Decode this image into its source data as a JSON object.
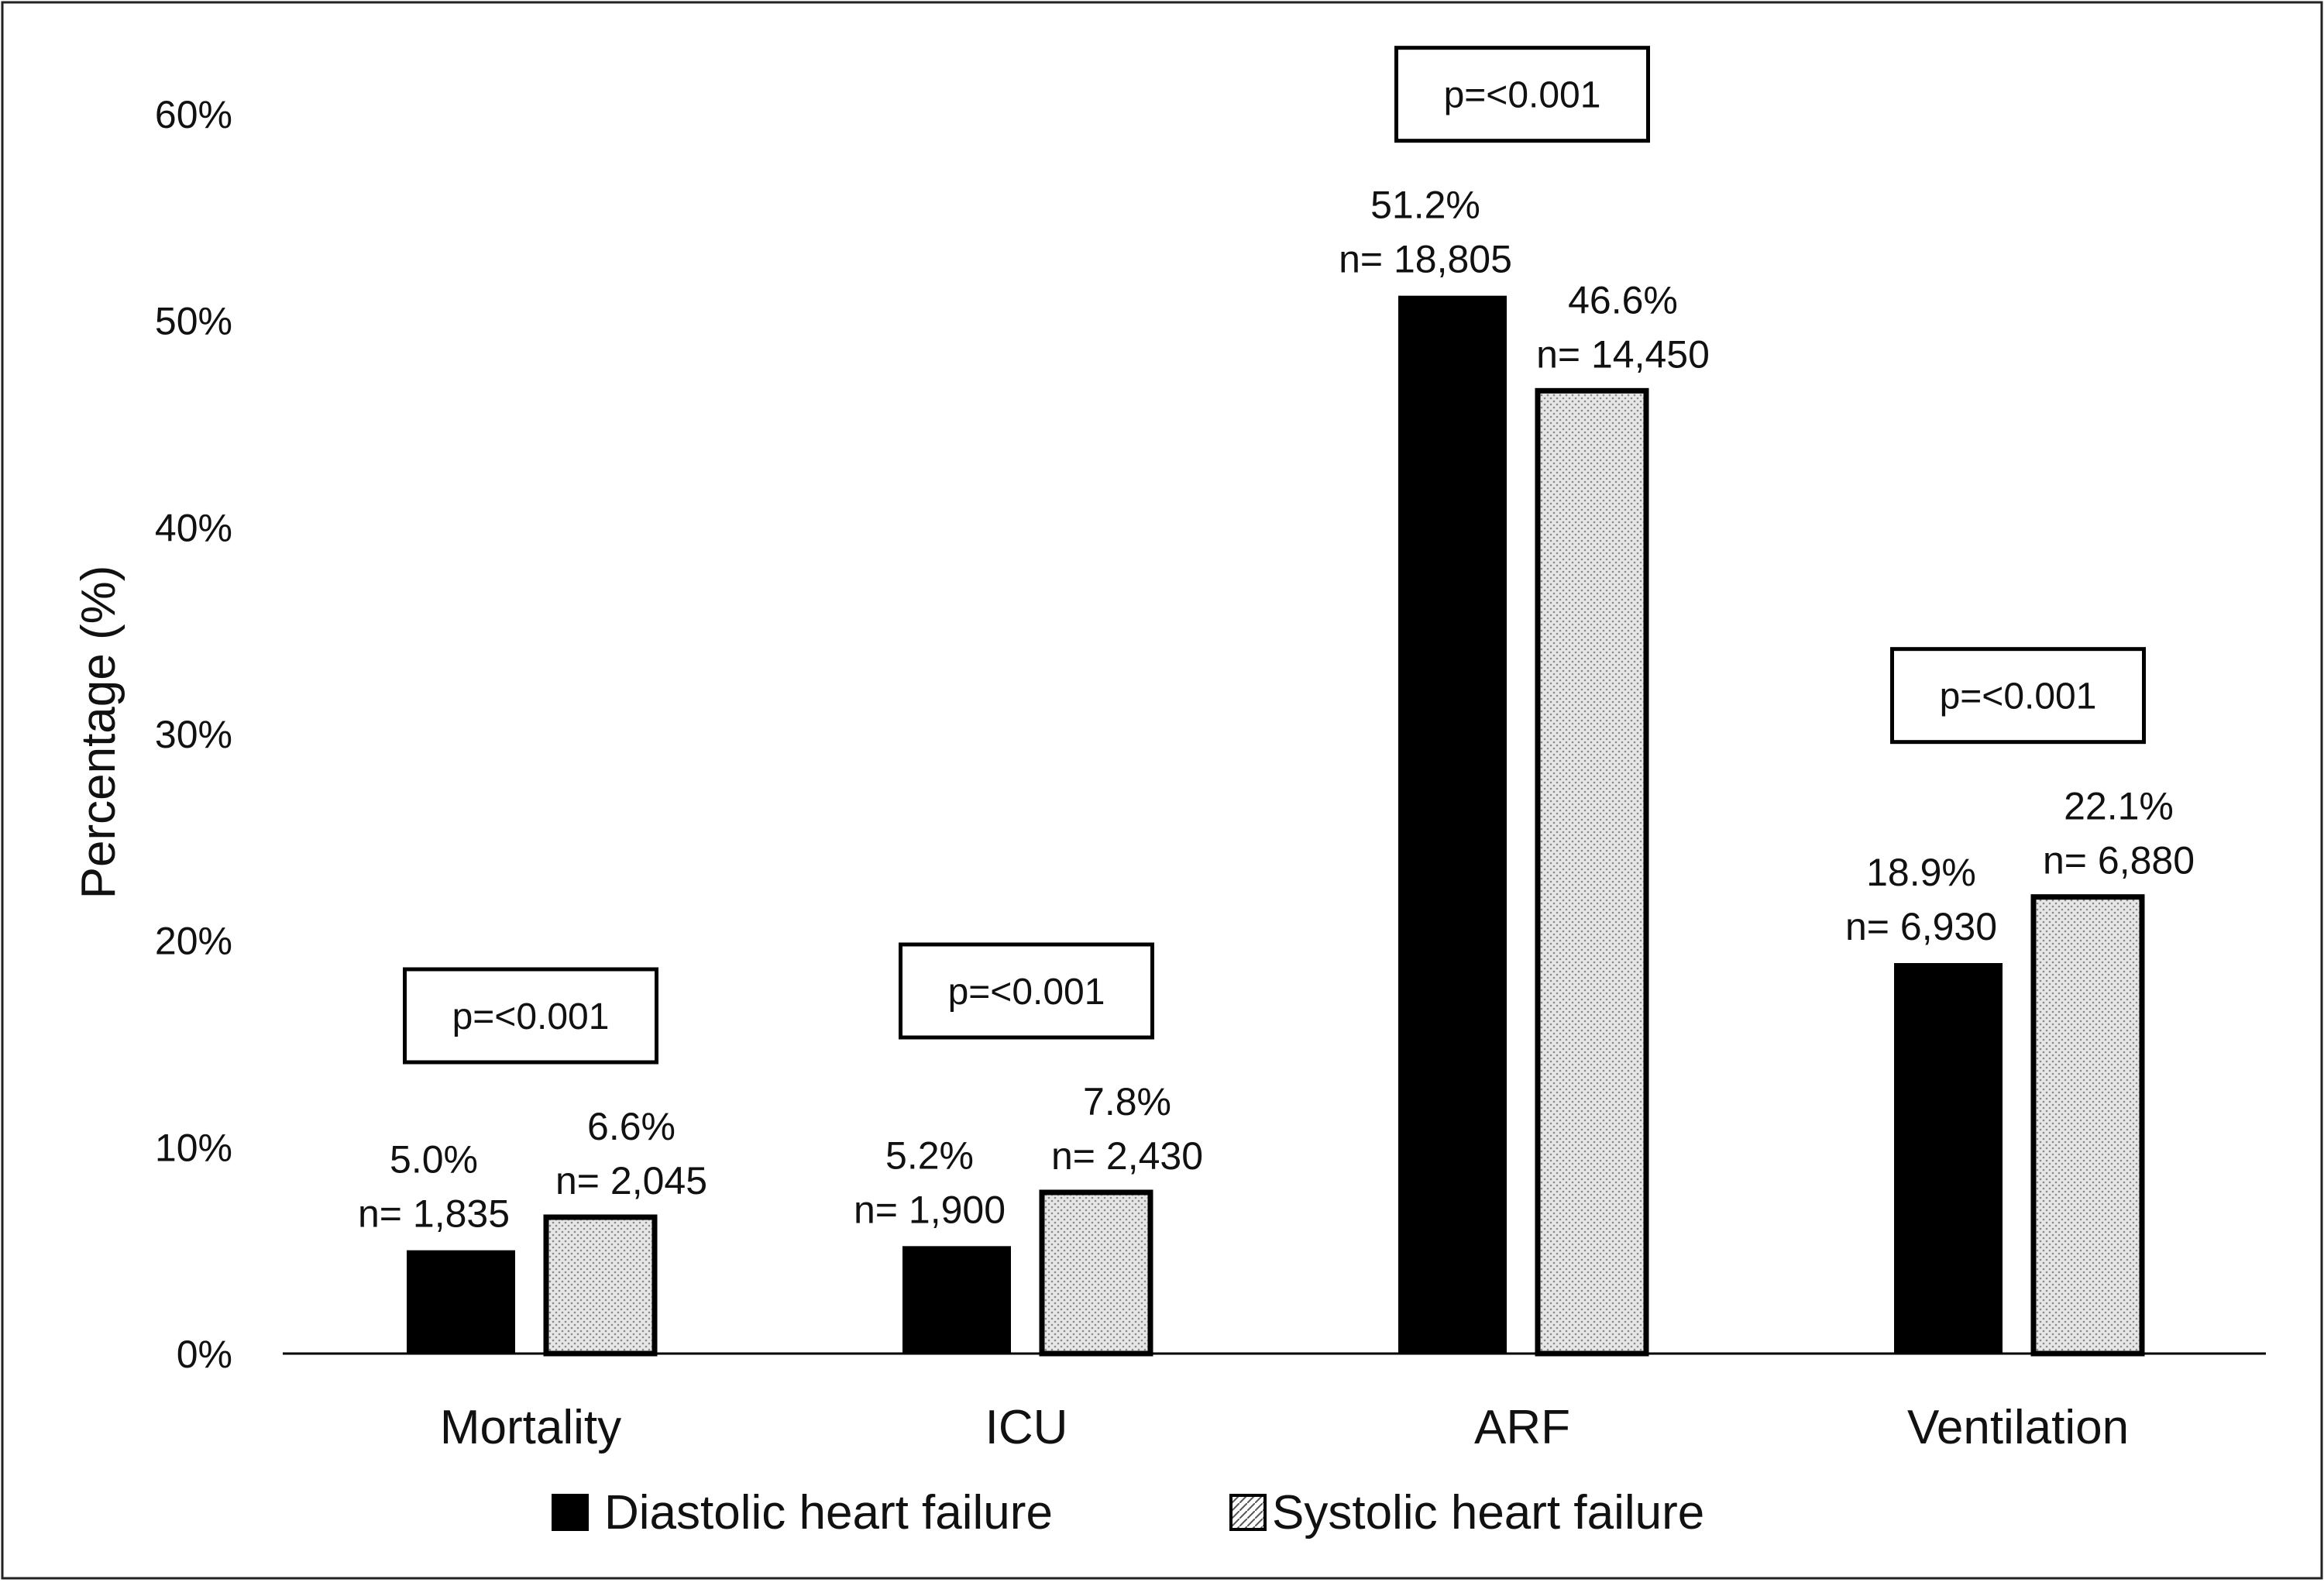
{
  "chart_data": {
    "type": "bar",
    "title": "",
    "xlabel": "",
    "ylabel": "Percentage (%)",
    "ylim": [
      0,
      60
    ],
    "yticks": [
      0,
      10,
      20,
      30,
      40,
      50,
      60
    ],
    "ytick_labels": [
      "0%",
      "10%",
      "20%",
      "30%",
      "40%",
      "50%",
      "60%"
    ],
    "grid": false,
    "legend_position": "bottom-center",
    "categories": [
      "Mortality",
      "ICU",
      "ARF",
      "Ventilation"
    ],
    "series": [
      {
        "name": "Diastolic heart failure",
        "fill": "solid-black",
        "values": [
          5.0,
          5.2,
          51.2,
          18.9
        ],
        "value_labels": [
          "5.0%",
          "5.2%",
          "51.2%",
          "18.9%"
        ],
        "n_labels": [
          "n= 1,835",
          "n= 1,900",
          "n= 18,805",
          "n= 6,930"
        ]
      },
      {
        "name": "Systolic heart failure",
        "fill": "dotted-grey",
        "values": [
          6.6,
          7.8,
          46.6,
          22.1
        ],
        "value_labels": [
          "6.6%",
          "7.8%",
          "46.6%",
          "22.1%"
        ],
        "n_labels": [
          "n= 2,045",
          "n= 2,430",
          "n= 14,450",
          "n= 6,880"
        ]
      }
    ],
    "annotations": [
      "p=<0.001",
      "p=<0.001",
      "p=<0.001",
      "p=<0.001"
    ]
  },
  "colors": {
    "diastolic": "#000000",
    "systolic_fill": "#e6e6e6",
    "systolic_dot": "#8a8a8a",
    "outline": "#000000",
    "axis": "#000000"
  }
}
